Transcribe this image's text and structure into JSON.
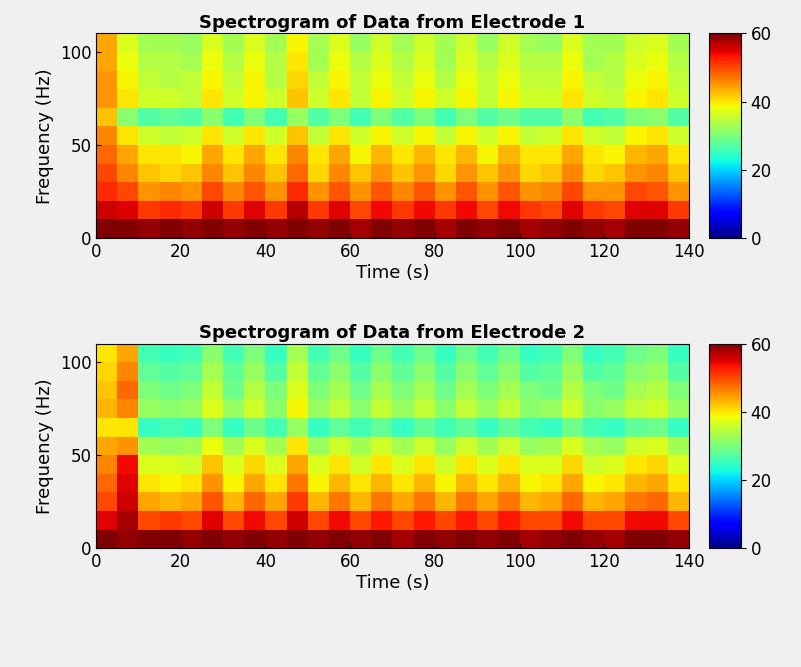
{
  "chart_data": [
    {
      "type": "heatmap",
      "title": "Spectrogram of Data from Electrode 1",
      "x_label": "Time (s)",
      "y_label": "Frequency (Hz)",
      "xlim": [
        0,
        140
      ],
      "ylim": [
        0,
        110
      ],
      "xticks": [
        0,
        20,
        40,
        60,
        80,
        100,
        120,
        140
      ],
      "yticks": [
        0,
        50,
        100
      ],
      "color": "jet",
      "colorbar_range": [
        0,
        60
      ],
      "colorbar_ticks": [
        0,
        20,
        40,
        60
      ],
      "x_edges": [
        0,
        5,
        10,
        15,
        20,
        25,
        30,
        35,
        40,
        45,
        50,
        55,
        60,
        65,
        70,
        75,
        80,
        85,
        90,
        95,
        100,
        105,
        110,
        115,
        120,
        125,
        130,
        135,
        140
      ],
      "y_edges": [
        0,
        10,
        20,
        30,
        40,
        50,
        60,
        70,
        80,
        90,
        100,
        110
      ],
      "cells": [
        [
          60,
          60,
          59,
          60,
          59,
          60,
          59,
          60,
          59,
          60,
          59,
          60,
          58,
          60,
          59,
          60,
          58,
          60,
          59,
          60,
          58,
          59,
          60,
          59,
          58,
          60,
          60,
          59
        ],
        [
          56,
          55,
          51,
          52,
          51,
          56,
          51,
          55,
          51,
          57,
          51,
          55,
          50,
          54,
          51,
          54,
          51,
          54,
          50,
          54,
          51,
          50,
          55,
          51,
          50,
          55,
          55,
          51
        ],
        [
          52,
          50,
          45,
          46,
          45,
          50,
          46,
          49,
          45,
          52,
          45,
          49,
          45,
          49,
          46,
          49,
          45,
          49,
          45,
          49,
          45,
          46,
          50,
          45,
          45,
          50,
          49,
          45
        ],
        [
          50,
          46,
          42,
          41,
          42,
          46,
          42,
          46,
          42,
          48,
          41,
          46,
          42,
          45,
          42,
          45,
          41,
          45,
          42,
          45,
          41,
          42,
          46,
          41,
          42,
          45,
          46,
          42
        ],
        [
          48,
          44,
          40,
          40,
          39,
          44,
          40,
          44,
          40,
          46,
          40,
          44,
          39,
          43,
          40,
          43,
          40,
          43,
          39,
          43,
          40,
          40,
          44,
          40,
          39,
          43,
          44,
          40
        ],
        [
          46,
          40,
          36,
          35,
          36,
          40,
          36,
          40,
          36,
          42,
          35,
          40,
          36,
          39,
          36,
          39,
          35,
          39,
          36,
          39,
          35,
          36,
          40,
          36,
          35,
          39,
          40,
          36
        ],
        [
          42,
          31,
          27,
          28,
          27,
          31,
          26,
          30,
          26,
          32,
          27,
          30,
          26,
          30,
          27,
          30,
          26,
          30,
          27,
          29,
          27,
          27,
          31,
          26,
          27,
          30,
          31,
          27
        ],
        [
          45,
          40,
          36,
          36,
          35,
          40,
          36,
          39,
          36,
          42,
          36,
          40,
          35,
          39,
          36,
          39,
          36,
          39,
          35,
          39,
          36,
          36,
          40,
          36,
          35,
          39,
          40,
          36
        ],
        [
          45,
          39,
          35,
          34,
          35,
          39,
          35,
          39,
          34,
          41,
          35,
          39,
          35,
          38,
          35,
          38,
          34,
          38,
          35,
          38,
          35,
          35,
          39,
          35,
          34,
          38,
          39,
          35
        ],
        [
          44,
          38,
          34,
          34,
          33,
          38,
          34,
          38,
          34,
          40,
          33,
          38,
          34,
          37,
          34,
          37,
          33,
          37,
          34,
          37,
          34,
          34,
          38,
          33,
          34,
          37,
          38,
          34
        ],
        [
          44,
          37,
          33,
          33,
          32,
          37,
          33,
          37,
          33,
          39,
          33,
          37,
          32,
          36,
          33,
          36,
          33,
          36,
          32,
          36,
          33,
          32,
          37,
          33,
          33,
          36,
          37,
          33
        ]
      ]
    },
    {
      "type": "heatmap",
      "title": "Spectrogram of Data from Electrode 2",
      "x_label": "Time (s)",
      "y_label": "Frequency (Hz)",
      "xlim": [
        0,
        140
      ],
      "ylim": [
        0,
        110
      ],
      "xticks": [
        0,
        20,
        40,
        60,
        80,
        100,
        120,
        140
      ],
      "yticks": [
        0,
        50,
        100
      ],
      "color": "jet",
      "colorbar_range": [
        0,
        60
      ],
      "colorbar_ticks": [
        0,
        20,
        40,
        60
      ],
      "x_edges": [
        0,
        5,
        10,
        15,
        20,
        25,
        30,
        35,
        40,
        45,
        50,
        55,
        60,
        65,
        70,
        75,
        80,
        85,
        90,
        95,
        100,
        105,
        110,
        115,
        120,
        125,
        130,
        135,
        140
      ],
      "y_edges": [
        0,
        10,
        20,
        30,
        40,
        50,
        60,
        70,
        80,
        90,
        100,
        110
      ],
      "cells": [
        [
          60,
          59,
          60,
          60,
          59,
          60,
          59,
          60,
          59,
          60,
          59,
          60,
          59,
          60,
          58,
          60,
          59,
          60,
          59,
          60,
          58,
          59,
          60,
          59,
          58,
          60,
          60,
          59
        ],
        [
          55,
          58,
          50,
          51,
          50,
          55,
          50,
          54,
          50,
          56,
          50,
          54,
          50,
          53,
          50,
          53,
          50,
          53,
          50,
          53,
          50,
          50,
          54,
          50,
          50,
          54,
          54,
          50
        ],
        [
          50,
          56,
          44,
          43,
          44,
          49,
          43,
          48,
          44,
          51,
          43,
          47,
          43,
          47,
          44,
          47,
          43,
          47,
          44,
          47,
          43,
          44,
          48,
          43,
          44,
          47,
          48,
          43
        ],
        [
          48,
          55,
          40,
          39,
          40,
          45,
          39,
          44,
          40,
          47,
          39,
          43,
          40,
          43,
          40,
          43,
          39,
          43,
          40,
          43,
          39,
          40,
          44,
          39,
          40,
          43,
          44,
          40
        ],
        [
          46,
          54,
          37,
          37,
          36,
          42,
          37,
          41,
          37,
          44,
          37,
          40,
          36,
          40,
          37,
          40,
          36,
          40,
          37,
          40,
          37,
          37,
          41,
          36,
          37,
          40,
          41,
          37
        ],
        [
          44,
          45,
          33,
          32,
          33,
          38,
          33,
          37,
          33,
          40,
          32,
          36,
          33,
          36,
          33,
          36,
          32,
          36,
          33,
          36,
          32,
          33,
          37,
          33,
          32,
          36,
          37,
          33
        ],
        [
          40,
          40,
          25,
          26,
          25,
          30,
          25,
          29,
          26,
          32,
          25,
          28,
          26,
          28,
          25,
          28,
          26,
          28,
          25,
          28,
          26,
          25,
          29,
          26,
          25,
          28,
          29,
          25
        ],
        [
          43,
          46,
          32,
          31,
          32,
          37,
          32,
          36,
          31,
          39,
          32,
          35,
          31,
          35,
          32,
          35,
          31,
          35,
          32,
          35,
          31,
          32,
          36,
          31,
          32,
          35,
          36,
          32
        ],
        [
          42,
          48,
          30,
          29,
          30,
          35,
          29,
          34,
          30,
          37,
          30,
          33,
          29,
          33,
          30,
          33,
          29,
          33,
          30,
          33,
          30,
          29,
          34,
          30,
          29,
          33,
          34,
          30
        ],
        [
          41,
          46,
          28,
          27,
          28,
          33,
          28,
          32,
          27,
          35,
          28,
          31,
          27,
          31,
          28,
          31,
          27,
          31,
          28,
          31,
          27,
          28,
          32,
          27,
          28,
          31,
          32,
          27
        ],
        [
          40,
          44,
          26,
          25,
          26,
          31,
          26,
          30,
          25,
          33,
          26,
          29,
          25,
          29,
          26,
          29,
          25,
          29,
          26,
          29,
          25,
          26,
          30,
          25,
          26,
          29,
          30,
          25
        ]
      ]
    }
  ]
}
